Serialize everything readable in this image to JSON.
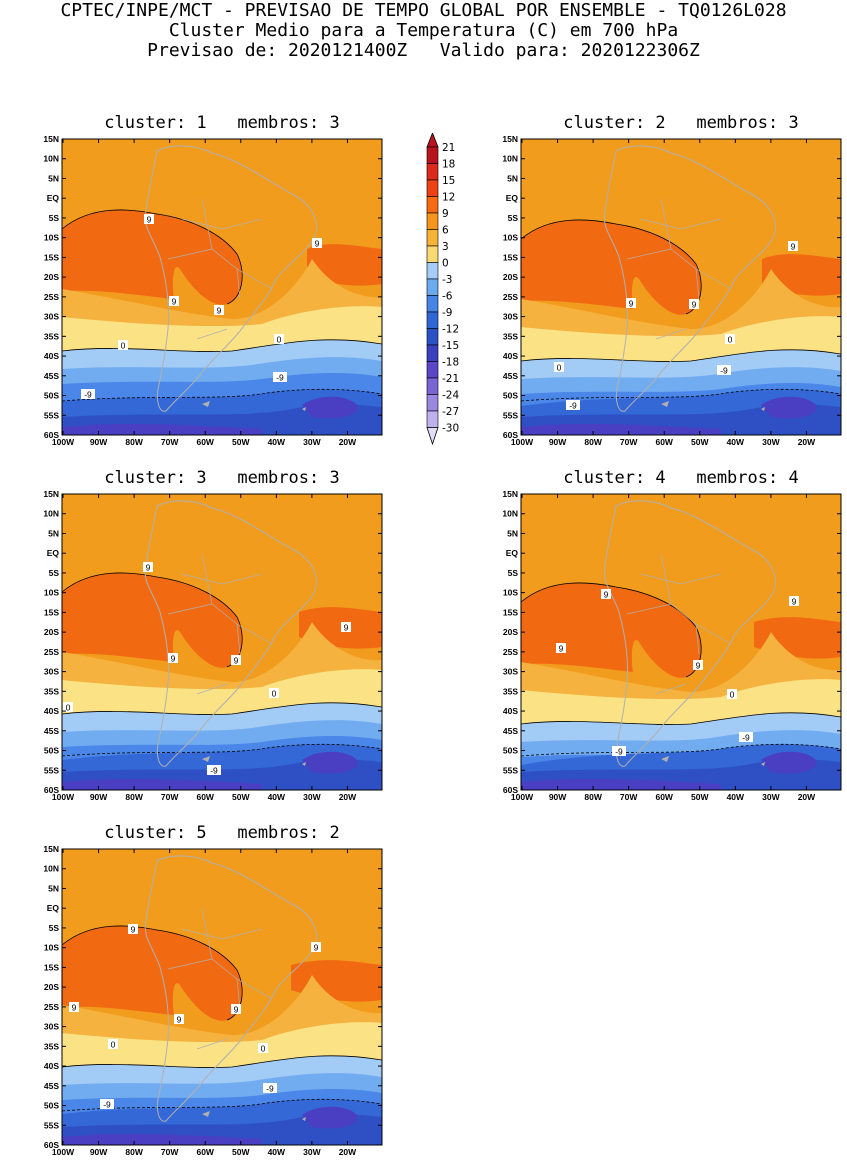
{
  "header": {
    "line1": "CPTEC/INPE/MCT - PREVISAO DE TEMPO GLOBAL POR ENSEMBLE - TQ0126L028",
    "line2": "Cluster Medio para a Temperatura (C) em 700 hPa",
    "line3": "Previsao de: 2020121400Z   Valido para: 2020122306Z"
  },
  "axes": {
    "lat_labels": [
      "15N",
      "10N",
      "5N",
      "EQ",
      "5S",
      "10S",
      "15S",
      "20S",
      "25S",
      "30S",
      "35S",
      "40S",
      "45S",
      "50S",
      "55S",
      "60S"
    ],
    "lon_labels": [
      "100W",
      "90W",
      "80W",
      "70W",
      "60W",
      "50W",
      "40W",
      "30W",
      "20W"
    ]
  },
  "colorbar": {
    "labels": [
      "21",
      "18",
      "15",
      "12",
      "9",
      "6",
      "3",
      "0",
      "-3",
      "-6",
      "-9",
      "-12",
      "-15",
      "-18",
      "-21",
      "-24",
      "-27",
      "-30"
    ],
    "colors": [
      "#b7141e",
      "#dc2a1c",
      "#ee4114",
      "#f76a10",
      "#f6951c",
      "#f7b338",
      "#fad872",
      "#a6cdf8",
      "#6caaf0",
      "#4684e6",
      "#3066d4",
      "#2a52c6",
      "#3a40c0",
      "#5b46c8",
      "#7964d4",
      "#9a88e0",
      "#bfb2ec",
      "#e2dcf6"
    ],
    "field_colors": {
      "c_12_15": "#f16a12",
      "c_6_9": "#f29c1d",
      "c_3_6": "#f5b23f",
      "c_0_3": "#fbe285",
      "c_m3_0": "#a2cbf6",
      "c_m6_m3": "#72acf0",
      "c_m9_m6": "#4a87e8",
      "c_m12_m9": "#3468d6",
      "c_m15_m12": "#2e50c4",
      "c_m18_m15": "#4a3fc2",
      "land": "#b0b0b0"
    }
  },
  "panels": [
    {
      "title": "cluster: 1   membros: 3",
      "labels": [
        "9",
        "9",
        "9",
        "9",
        "0",
        "0",
        "-9",
        "-9"
      ]
    },
    {
      "title": "cluster: 2   membros: 3",
      "labels": [
        "9",
        "9",
        "9",
        "0",
        "0",
        "-9",
        "-9"
      ]
    },
    {
      "title": "cluster: 3   membros: 3",
      "labels": [
        "9",
        "9",
        "9",
        "9",
        "0",
        "0",
        "-9"
      ]
    },
    {
      "title": "cluster: 4   membros: 4",
      "labels": [
        "9",
        "9",
        "9",
        "9",
        "0",
        "-9",
        "-9"
      ]
    },
    {
      "title": "cluster: 5   membros: 2",
      "labels": [
        "9",
        "9",
        "9",
        "9",
        "9",
        "0",
        "0",
        "-9",
        "-9"
      ]
    }
  ]
}
